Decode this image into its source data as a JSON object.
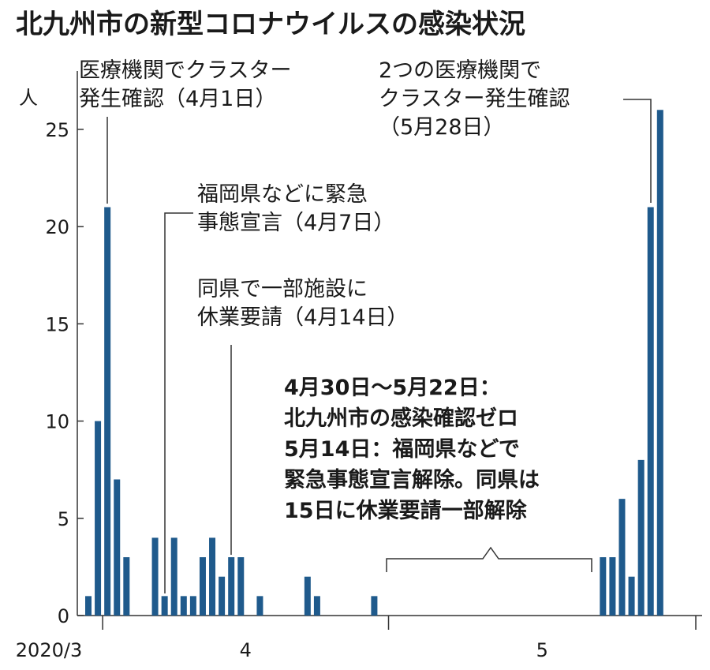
{
  "chart_data": {
    "type": "bar",
    "title": "北九州市の新型コロナウイルスの感染状況",
    "y_unit": "人",
    "categories": [
      null,
      null,
      null,
      null,
      null,
      null,
      null,
      null,
      null,
      null,
      null,
      null,
      null,
      null,
      null,
      null,
      null,
      null,
      null,
      null,
      null,
      null,
      null,
      null,
      null,
      null,
      null,
      null,
      null,
      null,
      null,
      null,
      null,
      null,
      null,
      null,
      null,
      null,
      null,
      null,
      null,
      null,
      null,
      null,
      null,
      null,
      null,
      null,
      null,
      null,
      null,
      null,
      null,
      null,
      null,
      null,
      null,
      null,
      null,
      null,
      null
    ],
    "values": [
      1,
      10,
      21,
      7,
      3,
      0,
      0,
      4,
      1,
      4,
      1,
      1,
      3,
      4,
      2,
      3,
      3,
      0,
      1,
      0,
      0,
      0,
      0,
      2,
      1,
      0,
      0,
      0,
      0,
      0,
      1,
      0,
      0,
      0,
      0,
      0,
      0,
      0,
      0,
      0,
      0,
      0,
      0,
      0,
      0,
      0,
      0,
      0,
      0,
      0,
      0,
      0,
      0,
      0,
      3,
      3,
      6,
      2,
      8,
      21,
      26
    ],
    "color": "#1f5a8c",
    "month_labels": [
      "2020/3",
      "4",
      "5"
    ],
    "ylim": [
      0,
      28
    ],
    "yticks": [
      0,
      5,
      10,
      15,
      20,
      25
    ],
    "annotations": [
      {
        "lines": [
          "医療機関でクラスター",
          "発生確認（4月1日）"
        ]
      },
      {
        "lines": [
          "福岡県などに緊急",
          "事態宣言（4月7日）"
        ]
      },
      {
        "lines": [
          "同県で一部施設に",
          "休業要請（4月14日）"
        ]
      },
      {
        "lines": [
          "2つの医療機関で",
          "クラスター発生確認",
          "（5月28日）"
        ]
      },
      {
        "lines": [
          "4月30日～5月22日：",
          "北九州市の感染確認ゼロ",
          "5月14日：福岡県などで",
          "緊急事態宣言解除。同県は",
          "15日に休業要請一部解除"
        ]
      }
    ]
  }
}
